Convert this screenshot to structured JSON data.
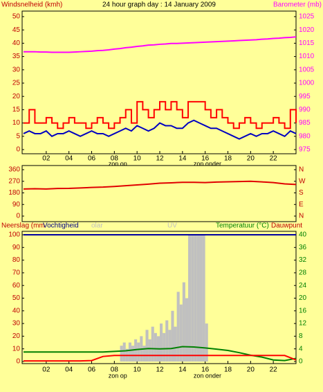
{
  "chart_data": [
    {
      "type": "line",
      "title": "24 hour graph day : 14 January 2009",
      "ylabel": "Windsnelheid (kmh)",
      "y2label": "Barometer (mb)",
      "x": [
        0,
        0.5,
        1,
        1.5,
        2,
        2.5,
        3,
        3.5,
        4,
        4.5,
        5,
        5.5,
        6,
        6.5,
        7,
        7.5,
        8,
        8.5,
        9,
        9.5,
        10,
        10.5,
        11,
        11.5,
        12,
        12.5,
        13,
        13.5,
        14,
        14.5,
        15,
        15.5,
        16,
        16.5,
        17,
        17.5,
        18,
        18.5,
        19,
        19.5,
        20,
        20.5,
        21,
        21.5,
        22,
        22.5,
        23,
        23.5,
        24
      ],
      "xlim": [
        0,
        24
      ],
      "xticks": [
        {
          "value": 2,
          "label": "02"
        },
        {
          "value": 4,
          "label": "04"
        },
        {
          "value": 6,
          "label": "06"
        },
        {
          "value": 8,
          "label": "08"
        },
        10,
        12,
        14,
        16,
        18,
        20,
        22
      ],
      "ylim": [
        0,
        50
      ],
      "yticks": [
        0,
        5,
        10,
        15,
        20,
        25,
        30,
        35,
        40,
        45,
        50
      ],
      "y2lim": [
        975,
        1025
      ],
      "y2ticks": [
        975,
        980,
        985,
        990,
        995,
        1000,
        1005,
        1010,
        1015,
        1020,
        1025
      ],
      "annotations": [
        {
          "text": "zon op",
          "x": 8.3
        },
        {
          "text": "zon onder",
          "x": 16.2
        }
      ],
      "series": [
        {
          "color": "#ff00ff",
          "axis": "y2",
          "values": [
            1011.8,
            1011.8,
            1011.8,
            1011.7,
            1011.7,
            1011.6,
            1011.6,
            1011.6,
            1011.6,
            1011.7,
            1011.8,
            1011.9,
            1012,
            1012.2,
            1012.3,
            1012.5,
            1012.8,
            1013,
            1013.3,
            1013.5,
            1013.8,
            1014,
            1014.3,
            1014.4,
            1014.6,
            1014.7,
            1014.9,
            1014.9,
            1015,
            1015.1,
            1015.2,
            1015.3,
            1015.4,
            1015.5,
            1015.6,
            1015.7,
            1015.8,
            1015.9,
            1016,
            1016.1,
            1016.2,
            1016.3,
            1016.5,
            1016.6,
            1016.8,
            1016.9,
            1017.1,
            1017.2,
            1017.4
          ]
        },
        {
          "color": "#ff0000",
          "step": true,
          "values": [
            10,
            15,
            10,
            10,
            12,
            10,
            8,
            10,
            12,
            10,
            10,
            8,
            10,
            12,
            10,
            8,
            10,
            12,
            15,
            10,
            18,
            15,
            12,
            15,
            18,
            15,
            18,
            15,
            12,
            18,
            18,
            18,
            15,
            12,
            15,
            12,
            10,
            8,
            10,
            12,
            10,
            8,
            10,
            10,
            12,
            10,
            8,
            15,
            10
          ]
        },
        {
          "color": "#0000c0",
          "values": [
            6,
            7,
            6,
            6,
            7,
            5,
            6,
            6,
            7,
            6,
            5,
            6,
            7,
            6,
            6,
            5,
            6,
            7,
            8,
            7,
            9,
            8,
            7,
            8,
            10,
            9,
            9,
            8,
            8,
            10,
            11,
            10,
            9,
            8,
            8,
            7,
            6,
            5,
            4,
            5,
            6,
            5,
            6,
            6,
            7,
            6,
            5,
            7,
            6
          ]
        }
      ]
    },
    {
      "type": "line",
      "x": [
        0,
        1,
        2,
        3,
        4,
        5,
        6,
        7,
        8,
        9,
        10,
        11,
        12,
        13,
        14,
        15,
        16,
        17,
        18,
        19,
        20,
        21,
        22,
        23,
        24
      ],
      "xlim": [
        0,
        24
      ],
      "ylim": [
        0,
        360
      ],
      "yticks": [
        0,
        90,
        180,
        270,
        360
      ],
      "y2lim": [
        0,
        360
      ],
      "y2ticks": [
        {
          "value": 0,
          "label": "N"
        },
        {
          "value": 90,
          "label": "E"
        },
        {
          "value": 180,
          "label": "S"
        },
        {
          "value": 270,
          "label": "W"
        },
        {
          "value": 360,
          "label": "N"
        }
      ],
      "series": [
        {
          "color": "#e00000",
          "values": [
            210,
            212,
            210,
            214,
            215,
            218,
            222,
            225,
            230,
            236,
            242,
            248,
            255,
            258,
            262,
            262,
            260,
            264,
            266,
            268,
            270,
            265,
            260,
            250,
            245
          ]
        }
      ]
    },
    {
      "type": "line",
      "labels": [
        {
          "text": "Neerslag (mm",
          "color": "#c00000"
        },
        {
          "text": "Vochtigheid",
          "color": "#000080"
        },
        {
          "text": "olar",
          "color": "#c0c0c0"
        },
        {
          "text": "UV",
          "color": "#c0c0c0"
        },
        {
          "text": "Temperatuur (°C)",
          "color": "#008000"
        },
        {
          "text": "Dauwpunt",
          "color": "#c00000"
        }
      ],
      "x": [
        0,
        1,
        2,
        3,
        4,
        5,
        6,
        7,
        8,
        9,
        10,
        11,
        12,
        13,
        14,
        15,
        16,
        17,
        18,
        19,
        20,
        21,
        22,
        23,
        24
      ],
      "xlim": [
        0,
        24
      ],
      "xticks": [
        {
          "value": 2,
          "label": "02"
        },
        {
          "value": 4,
          "label": "04"
        },
        {
          "value": 6,
          "label": "06"
        },
        {
          "value": 8,
          "label": "08"
        },
        10,
        12,
        14,
        16,
        18,
        20,
        22
      ],
      "ylim": [
        0,
        100
      ],
      "yticks": [
        0,
        10,
        20,
        30,
        40,
        50,
        60,
        70,
        80,
        90,
        100
      ],
      "y2lim": [
        0,
        40
      ],
      "y2ticks": [
        0,
        4,
        8,
        12,
        16,
        20,
        24,
        28,
        32,
        36,
        40
      ],
      "annotations": [
        {
          "text": "zon op",
          "x": 8.3
        },
        {
          "text": "zon onder",
          "x": 16.2
        }
      ],
      "series": [
        {
          "color": "#c0c0c0",
          "type": "bar",
          "axis": "y2",
          "x": [
            8.5,
            8.75,
            9,
            9.25,
            9.5,
            9.75,
            10,
            10.25,
            10.5,
            10.75,
            11,
            11.25,
            11.5,
            11.75,
            12,
            12.25,
            12.5,
            12.75,
            13,
            13.25,
            13.5,
            13.75,
            14,
            14.25,
            14.5,
            14.75,
            15,
            15.25,
            15.5,
            15.75,
            16,
            16.25
          ],
          "values": [
            5,
            6,
            4,
            6,
            5,
            7,
            6,
            8,
            5,
            10,
            7,
            11,
            9,
            8,
            12,
            9,
            13,
            10,
            16,
            11,
            22,
            18,
            25,
            20,
            40,
            40,
            40,
            40,
            40,
            40,
            12,
            0
          ]
        },
        {
          "color": "#0000a0",
          "values": [
            100,
            100,
            100,
            100,
            100,
            100,
            100,
            100,
            100,
            100,
            100,
            100,
            100,
            100,
            100,
            100,
            100,
            100,
            100,
            100,
            100,
            100,
            100,
            100,
            100
          ]
        },
        {
          "color": "#008000",
          "axis": "y2",
          "values": [
            3,
            3,
            3,
            3,
            3,
            3,
            3,
            3,
            3.2,
            3.4,
            3.8,
            4.1,
            4,
            4.1,
            4.7,
            4.6,
            4.3,
            3.9,
            3.5,
            2.8,
            2,
            1.4,
            0.5,
            0.3,
            1
          ]
        },
        {
          "color": "#ff0000",
          "axis": "y2",
          "values": [
            0.2,
            0.2,
            0.2,
            0.2,
            0.2,
            0.2,
            0.3,
            1.6,
            1.9,
            1.9,
            1.9,
            1.9,
            1.9,
            1.9,
            1.9,
            1.9,
            1.9,
            1.9,
            1.9,
            1.9,
            1.9,
            1.9,
            1.9,
            1.9,
            0.5
          ]
        }
      ]
    }
  ]
}
